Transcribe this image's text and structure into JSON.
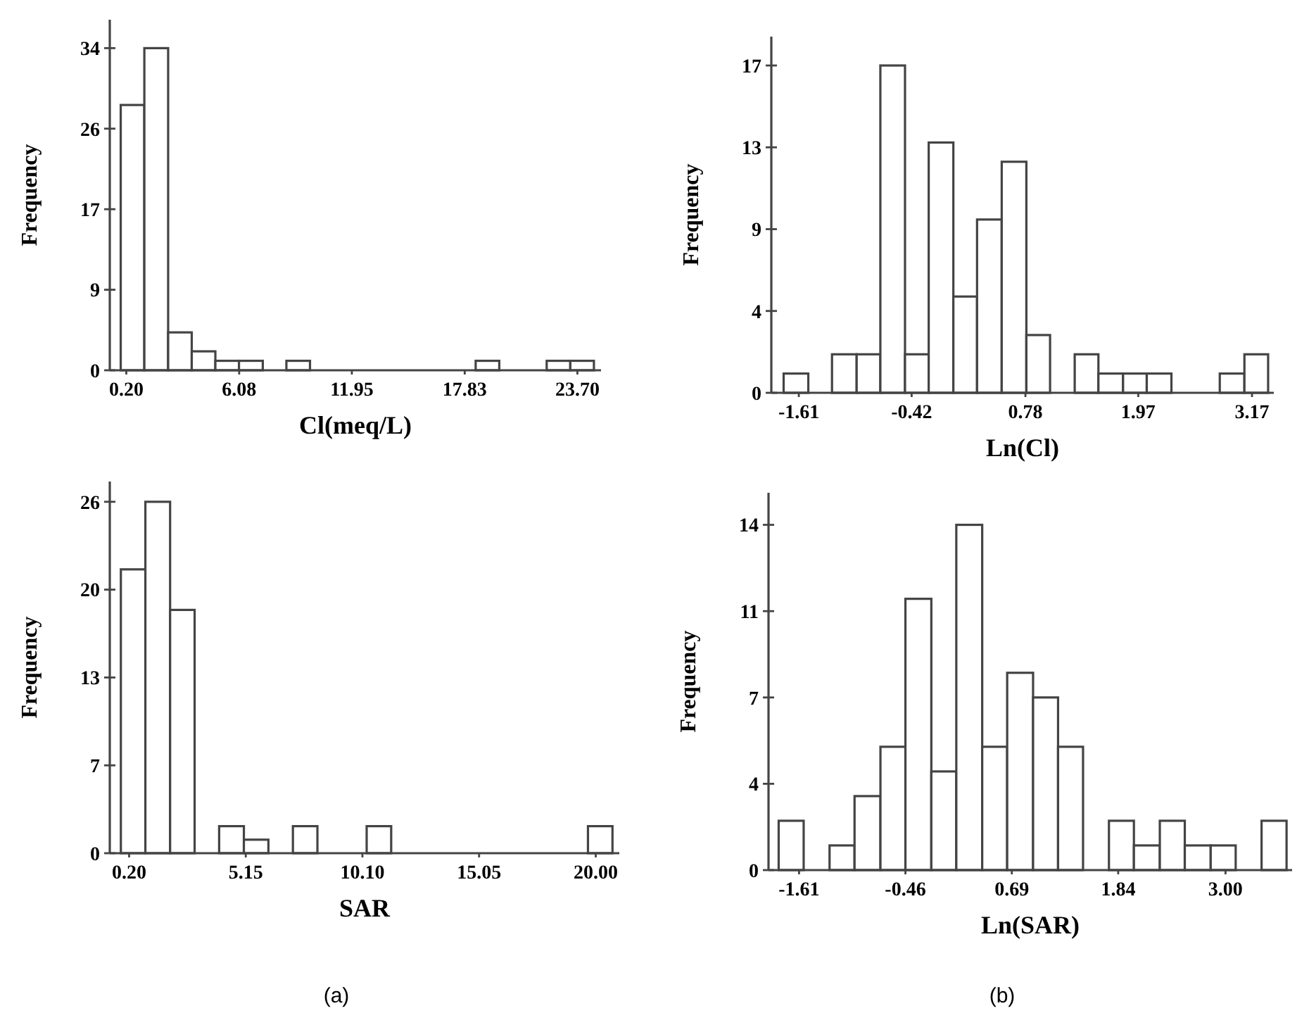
{
  "chart_data": [
    {
      "type": "histogram",
      "xlabel": "Cl(meq/L)",
      "ylabel": "Frequency",
      "color": "#ffffff",
      "bins": [
        -0.09,
        1.14,
        2.38,
        3.61,
        4.84,
        6.07,
        7.31,
        8.54,
        9.77,
        18.4,
        19.63,
        22.1,
        23.33,
        24.56
      ],
      "values": [
        28,
        34,
        4,
        2,
        1,
        1,
        0,
        1,
        0,
        1,
        0,
        1,
        1
      ],
      "xlim": [
        -0.66,
        24.93
      ],
      "xticks": [
        {
          "value": 0.2,
          "label": "0.20"
        },
        6.08,
        11.95,
        17.83,
        {
          "value": 23.7,
          "label": "23.70"
        }
      ],
      "ylim": [
        0,
        37
      ],
      "yticks": [
        0,
        {
          "value": 8.5,
          "label": "9"
        },
        17,
        {
          "value": 25.5,
          "label": "26"
        },
        34
      ]
    },
    {
      "type": "histogram",
      "xlabel": "Ln(Cl)",
      "ylabel": "Frequency",
      "color": "#ffffff",
      "bins": [
        -1.77,
        -1.51,
        -1.26,
        -1.0,
        -0.75,
        -0.49,
        -0.24,
        0.02,
        0.27,
        0.53,
        0.79,
        1.04,
        1.3,
        1.55,
        1.81,
        2.06,
        2.32,
        2.83,
        3.09,
        3.34
      ],
      "values": [
        1,
        0,
        2,
        2,
        17,
        2,
        13,
        5,
        9,
        12,
        3,
        0,
        2,
        1,
        1,
        1,
        0,
        1,
        2
      ],
      "xlim": [
        -1.9,
        3.4
      ],
      "xticks": [
        -1.61,
        -0.42,
        0.78,
        1.97,
        3.17
      ],
      "ylim": [
        0,
        18.5
      ],
      "yticks": [
        0,
        {
          "value": 4.25,
          "label": "4"
        },
        {
          "value": 8.5,
          "label": "9"
        },
        {
          "value": 12.75,
          "label": "13"
        },
        17
      ]
    },
    {
      "type": "histogram",
      "xlabel": "SAR",
      "ylabel": "Frequency",
      "color": "#ffffff",
      "bins": [
        -0.15,
        0.89,
        1.94,
        2.98,
        4.02,
        5.07,
        6.11,
        7.15,
        8.19,
        10.28,
        11.32,
        19.67,
        20.71
      ],
      "values": [
        21,
        26,
        18,
        0,
        2,
        1,
        0,
        2,
        0,
        2,
        0,
        2
      ],
      "xlim": [
        -0.62,
        21.0
      ],
      "xticks": [
        {
          "value": 0.2,
          "label": "0.20"
        },
        5.15,
        {
          "value": 10.1,
          "label": "10.10"
        },
        15.05,
        {
          "value": 20,
          "label": "20.00"
        }
      ],
      "ylim": [
        0,
        27.5
      ],
      "yticks": [
        0,
        {
          "value": 6.5,
          "label": "7"
        },
        13,
        {
          "value": 19.5,
          "label": "20"
        },
        26
      ],
      "annotations": [
        "(a)"
      ]
    },
    {
      "type": "histogram",
      "xlabel": "Ln(SAR)",
      "ylabel": "Frequency",
      "color": "#ffffff",
      "bins": [
        -1.83,
        -1.56,
        -1.28,
        -1.01,
        -0.73,
        -0.46,
        -0.18,
        0.09,
        0.37,
        0.64,
        0.92,
        1.19,
        1.46,
        1.74,
        2.01,
        2.29,
        2.56,
        2.84,
        3.11,
        3.39,
        3.66
      ],
      "values": [
        2,
        0,
        1,
        3,
        5,
        11,
        4,
        14,
        5,
        8,
        7,
        5,
        0,
        2,
        1,
        2,
        1,
        1,
        0,
        2
      ],
      "xlim": [
        -1.94,
        3.72
      ],
      "xticks": [
        -1.61,
        -0.46,
        0.69,
        1.84,
        {
          "value": 3,
          "label": "3.00"
        }
      ],
      "ylim": [
        0,
        15.3
      ],
      "yticks": [
        0,
        {
          "value": 3.5,
          "label": "4"
        },
        7,
        {
          "value": 10.5,
          "label": "11"
        },
        14
      ],
      "annotations": [
        "(b)"
      ]
    }
  ]
}
